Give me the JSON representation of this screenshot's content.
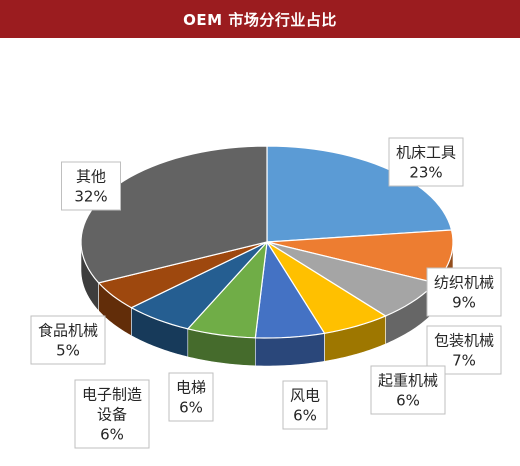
{
  "chart_data": {
    "type": "pie",
    "title": "OEM 市场分行业占比",
    "slices": [
      {
        "name": "机床工具",
        "value": 23,
        "label": "23%",
        "color": "#5b9bd5"
      },
      {
        "name": "纺织机械",
        "value": 9,
        "label": "9%",
        "color": "#ed7d31"
      },
      {
        "name": "包装机械",
        "value": 7,
        "label": "7%",
        "color": "#a5a5a5"
      },
      {
        "name": "起重机械",
        "value": 6,
        "label": "6%",
        "color": "#ffc000"
      },
      {
        "name": "风电",
        "value": 6,
        "label": "6%",
        "color": "#4472c4"
      },
      {
        "name": "电梯",
        "value": 6,
        "label": "6%",
        "color": "#70ad47"
      },
      {
        "name": "电子制造设备",
        "value": 6,
        "label": "6%",
        "color": "#255e91"
      },
      {
        "name": "食品机械",
        "value": 5,
        "label": "5%",
        "color": "#9e480e"
      },
      {
        "name": "其他",
        "value": 32,
        "label": "32%",
        "color": "#636363"
      }
    ]
  }
}
